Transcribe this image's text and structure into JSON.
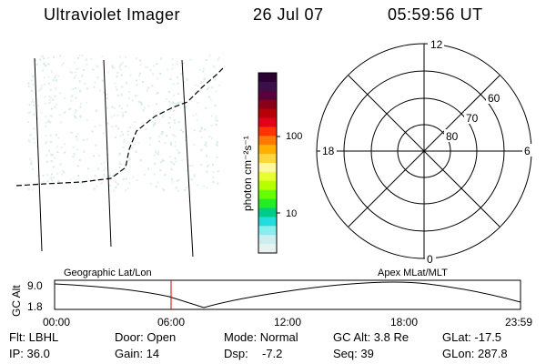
{
  "header": {
    "title": "Ultraviolet Imager",
    "date": "26 Jul 07",
    "time": "05:59:56 UT"
  },
  "colorbar": {
    "unit_label": "photon cm⁻²s⁻¹",
    "tick_labels": [
      "100",
      "10"
    ],
    "colors": [
      "#2a0033",
      "#3a0f4a",
      "#58003d",
      "#8a0018",
      "#b80008",
      "#e2001a",
      "#ff3300",
      "#ff7a00",
      "#ffb000",
      "#ffd640",
      "#fff6a0",
      "#e8ff30",
      "#b8ff00",
      "#66ff00",
      "#22ee22",
      "#00cc88",
      "#22dddd",
      "#88eeee",
      "#cceeee",
      "#e6f2f0"
    ]
  },
  "polar_plot": {
    "mlt_labels": {
      "top": "12",
      "left": "18",
      "right": "6",
      "bottom": "0"
    },
    "lat_labels": [
      "60",
      "70",
      "80"
    ]
  },
  "timeline": {
    "left_label": "Geographic Lat/Lon",
    "right_label": "Apex MLat/MLT",
    "axis_title": "GC Alt",
    "y_ticks": [
      "9.0",
      "1.8"
    ],
    "x_ticks": [
      "00:00",
      "06:00",
      "12:00",
      "18:00",
      "23:59"
    ],
    "marker_color": "#cc0000"
  },
  "info": {
    "flt": "Flt: LBHL",
    "ip": "IP: 36.0",
    "door": "Door: Open",
    "gain": "Gain: 14",
    "mode": "Mode: Normal",
    "dsp_label": "Dsp:",
    "dsp_value": "-7.2",
    "gc_alt": "GC Alt: 3.8 Re",
    "seq": "Seq: 39",
    "glat": "GLat: -17.5",
    "glon": "GLon: 287.8"
  }
}
